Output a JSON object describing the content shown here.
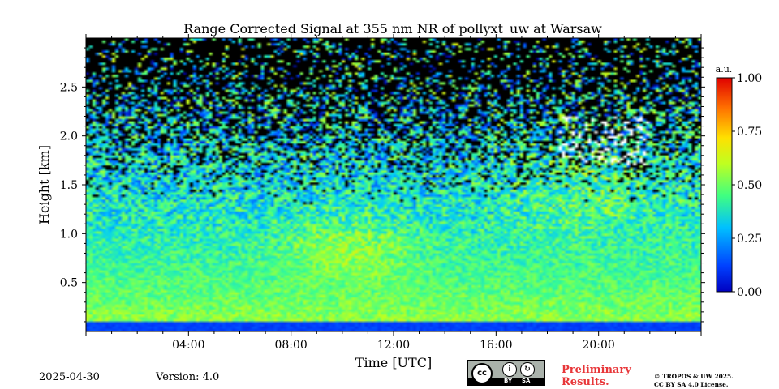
{
  "chart_data": {
    "type": "heatmap",
    "title": "Range Corrected Signal at 355 nm NR of pollyxt_uw at Warsaw",
    "xlabel": "Time [UTC]",
    "ylabel": "Height [km]",
    "xlim": [
      0,
      24
    ],
    "ylim": [
      0,
      3.0
    ],
    "xticks": [
      4,
      8,
      12,
      16,
      20
    ],
    "xtick_labels": [
      "04:00",
      "08:00",
      "12:00",
      "16:00",
      "20:00"
    ],
    "yticks": [
      0.5,
      1.0,
      1.5,
      2.0,
      2.5
    ],
    "ytick_labels": [
      "0.5",
      "1.0",
      "1.5",
      "2.0",
      "2.5"
    ],
    "colorbar": {
      "label": "a.u.",
      "range": [
        0.0,
        1.0
      ],
      "ticks": [
        0.0,
        0.25,
        0.5,
        0.75,
        1.0
      ],
      "tick_labels": [
        "0.00",
        "0.25",
        "0.50",
        "0.75",
        "1.00"
      ],
      "colormap": "jet"
    },
    "features": [
      {
        "name": "near-surface layer",
        "height_km": [
          0.0,
          0.1
        ],
        "value": 0.1
      },
      {
        "name": "boundary layer aerosol",
        "height_km": [
          0.1,
          1.2
        ],
        "value": 0.55
      },
      {
        "name": "enhanced aerosol plume",
        "time_h": [
          7.5,
          13.0
        ],
        "height_km": [
          0.5,
          1.2
        ],
        "value": 0.7
      },
      {
        "name": "high-altitude cloud",
        "time_h": [
          18.5,
          22.0
        ],
        "height_km": [
          1.7,
          2.2
        ],
        "value": 1.0
      }
    ]
  },
  "footer": {
    "date": "2025-04-30",
    "version": "Version: 4.0",
    "preliminary_line1": "Preliminary",
    "preliminary_line2": "Results.",
    "license_line1": "© TROPOS & UW 2025.",
    "license_line2": "CC BY SA 4.0 License.",
    "cc_logo": {
      "cc": "cc",
      "by": "BY",
      "sa": "SA"
    }
  }
}
